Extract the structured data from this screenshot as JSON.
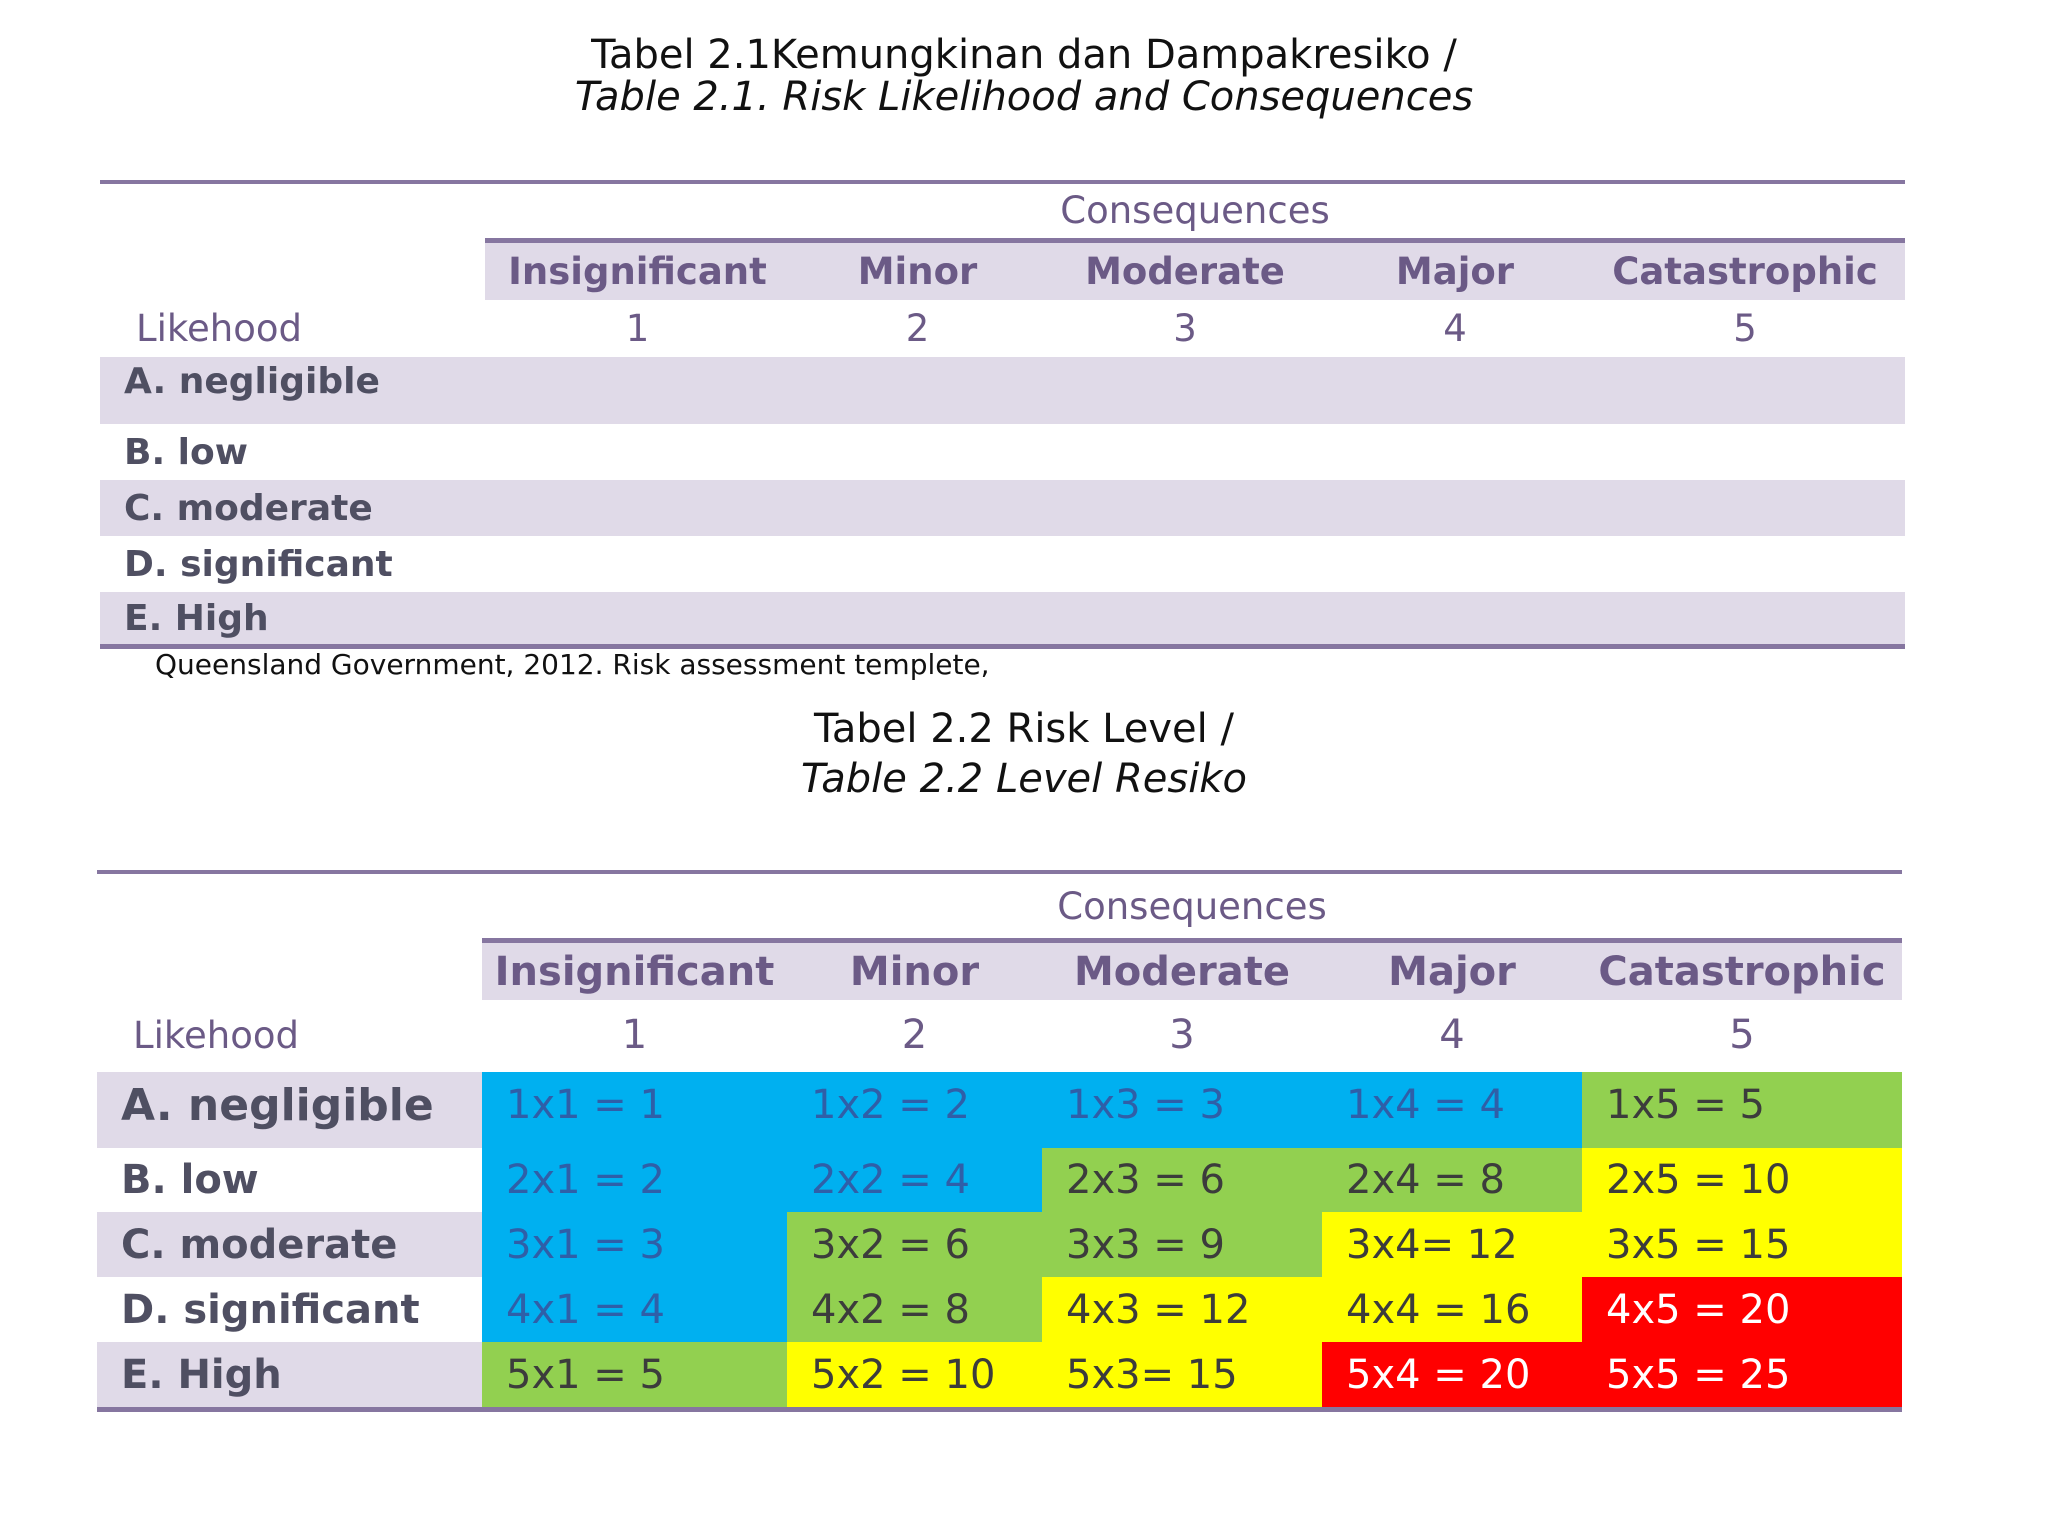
{
  "table1": {
    "title_line1": "Tabel 2.1Kemungkinan dan Dampakresiko /",
    "title_line2": "Table 2.1. Risk Likelihood and Consequences",
    "consequences_label": "Consequences",
    "likelihood_label": "Likehood",
    "headers": [
      "Insignificant",
      "Minor",
      "Moderate",
      "Major",
      "Catastrophic"
    ],
    "numbers": [
      "1",
      "2",
      "3",
      "4",
      "5"
    ],
    "rows": [
      "A. negligible",
      "B. low",
      "C. moderate",
      "D. significant",
      "E. High"
    ]
  },
  "source_note": "Queensland Government, 2012. Risk assessment templete,",
  "table2": {
    "title_line1": "Tabel 2.2  Risk Level /",
    "title_line2": "Table 2.2 Level Resiko",
    "consequences_label": "Consequences",
    "likelihood_label": "Likehood",
    "headers": [
      "Insignificant",
      "Minor",
      "Moderate",
      "Major",
      "Catastrophic"
    ],
    "numbers": [
      "1",
      "2",
      "3",
      "4",
      "5"
    ],
    "rows": [
      {
        "label": "A. negligible",
        "cells": [
          "1x1 = 1",
          "1x2 = 2",
          "1x3 = 3",
          "1x4 = 4",
          "1x5 = 5"
        ],
        "levels": [
          "blue",
          "blue",
          "blue",
          "blue",
          "green"
        ]
      },
      {
        "label": "B. low",
        "cells": [
          "2x1 = 2",
          "2x2 = 4",
          "2x3 = 6",
          "2x4 = 8",
          "2x5 = 10"
        ],
        "levels": [
          "blue",
          "blue",
          "green",
          "green",
          "yellow"
        ]
      },
      {
        "label": "C. moderate",
        "cells": [
          "3x1 = 3",
          "3x2 = 6",
          "3x3 = 9",
          "3x4= 12",
          "3x5 = 15"
        ],
        "levels": [
          "blue",
          "green",
          "green",
          "yellow",
          "yellow"
        ]
      },
      {
        "label": "D. significant",
        "cells": [
          "4x1 = 4",
          "4x2 = 8",
          "4x3 = 12",
          "4x4 = 16",
          "4x5 = 20"
        ],
        "levels": [
          "blue",
          "green",
          "yellow",
          "yellow",
          "red"
        ]
      },
      {
        "label": "E. High",
        "cells": [
          "5x1 = 5",
          "5x2 = 10",
          "5x3= 15",
          "5x4 = 20",
          "5x5 = 25"
        ],
        "levels": [
          "green",
          "yellow",
          "yellow",
          "red",
          "red"
        ]
      }
    ]
  },
  "colors": {
    "header_text": "#6b5a86",
    "rule": "#8676a0",
    "band": "#e0dae8",
    "blue": "#00b0f0",
    "green": "#92d050",
    "yellow": "#ffff00",
    "red": "#ff0000",
    "blue_text": "#2f5fa8",
    "green_text": "#3c3c3c",
    "yellow_text": "#3c3c3c",
    "red_text": "#ffffff"
  }
}
